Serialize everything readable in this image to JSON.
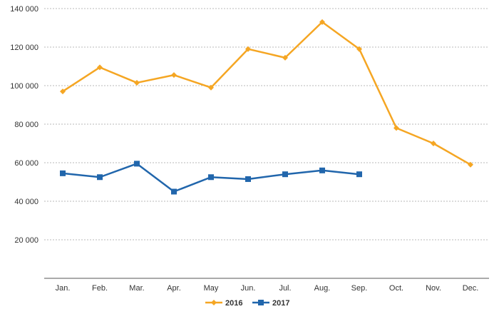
{
  "chart_data": {
    "type": "line",
    "title": "",
    "xlabel": "",
    "ylabel": "",
    "categories": [
      "Jan.",
      "Feb.",
      "Mar.",
      "Apr.",
      "May",
      "Jun.",
      "Jul.",
      "Aug.",
      "Sep.",
      "Oct.",
      "Nov.",
      "Dec."
    ],
    "yticks": [
      0,
      20000,
      40000,
      60000,
      80000,
      100000,
      120000,
      140000
    ],
    "ytick_labels": [
      "",
      "20 000",
      "40 000",
      "60 000",
      "80 000",
      "100 000",
      "120 000",
      "140 000"
    ],
    "ylim": [
      0,
      140000
    ],
    "grid": "horizontal",
    "legend_position": "bottom-center",
    "series": [
      {
        "name": "2016",
        "color": "#F5A623",
        "marker": "diamond",
        "values": [
          97000,
          109500,
          101500,
          105500,
          99000,
          119000,
          114500,
          133000,
          119000,
          78000,
          70000,
          59000
        ]
      },
      {
        "name": "2017",
        "color": "#2166AC",
        "marker": "square",
        "values": [
          54500,
          52500,
          59500,
          45000,
          52500,
          51500,
          54000,
          56000,
          54000,
          null,
          null,
          null
        ]
      }
    ]
  }
}
